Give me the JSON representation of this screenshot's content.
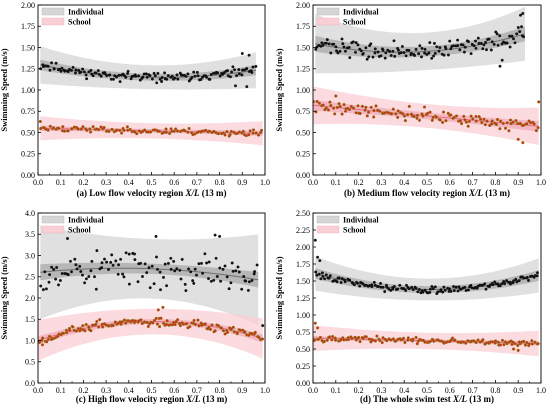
{
  "colors": {
    "individual_band_outer": "#d6d6d6",
    "individual_band_inner": "#a9a9a9",
    "individual_line": "#6e6e6e",
    "individual_points": "#111111",
    "school_band_outer": "#f9cfd6",
    "school_band_inner": "#f2a9b5",
    "school_line": "#e46b7e",
    "school_points_fill": "#cc2a1c",
    "school_points_edge": "#8a8a1a"
  },
  "common": {
    "ylabel": "Swimming Speed (m/s)",
    "x_ticks": [
      "0.0",
      "0.1",
      "0.2",
      "0.3",
      "0.4",
      "0.5",
      "0.6",
      "0.7",
      "0.8",
      "0.9",
      "1.0"
    ],
    "legend": [
      "Individual",
      "School"
    ]
  },
  "chart_data": [
    {
      "type": "scatter",
      "caption_prefix": "(a) Low flow velocity region ",
      "caption_var": "X/L",
      "caption_suffix": " (13 m)",
      "xlim": [
        0,
        1
      ],
      "ylim": [
        0,
        2
      ],
      "y_ticks": [
        "0.00",
        "0.25",
        "0.50",
        "0.75",
        "1.00",
        "1.25",
        "1.50",
        "1.75",
        "2.00"
      ],
      "legend_position": "top-left",
      "series": [
        {
          "name": "Individual",
          "seed": 11,
          "xmin": 0.01,
          "xmax": 0.96,
          "curve": [
            1.3,
            -0.55,
            0.5
          ],
          "noise": 0.05,
          "n": 140,
          "ci": 0.04,
          "pi": 0.14,
          "outliers": [
            [
              0.9,
              1.43
            ],
            [
              0.93,
              1.41
            ],
            [
              0.87,
              1.05
            ],
            [
              0.92,
              1.04
            ]
          ]
        },
        {
          "name": "School",
          "seed": 23,
          "xmin": 0.01,
          "xmax": 0.99,
          "curve": [
            0.55,
            -0.06,
            0.0
          ],
          "noise": 0.035,
          "n": 120,
          "ci": 0.02,
          "pi": 0.09,
          "outliers": [
            [
              0.01,
              0.63
            ]
          ]
        }
      ]
    },
    {
      "type": "scatter",
      "caption_prefix": "(b) Medium flow velocity region ",
      "caption_var": "X/L",
      "caption_suffix": " (13 m)",
      "xlim": [
        0,
        1
      ],
      "ylim": [
        0,
        2
      ],
      "y_ticks": [
        "0.00",
        "0.25",
        "0.50",
        "0.75",
        "1.00",
        "1.25",
        "1.50",
        "1.75",
        "2.00"
      ],
      "legend_position": "top-left",
      "series": [
        {
          "name": "Individual",
          "seed": 37,
          "xmin": 0.01,
          "xmax": 0.93,
          "curve": [
            1.55,
            -0.55,
            0.72
          ],
          "noise": 0.09,
          "n": 140,
          "ci": 0.06,
          "pi": 0.22,
          "outliers": [
            [
              0.91,
              1.88
            ],
            [
              0.92,
              1.9
            ],
            [
              0.82,
              1.28
            ],
            [
              0.83,
              1.35
            ]
          ]
        },
        {
          "name": "School",
          "seed": 41,
          "xmin": 0.0,
          "xmax": 0.99,
          "curve": [
            0.82,
            -0.25,
            0.0
          ],
          "noise": 0.07,
          "n": 130,
          "ci": 0.04,
          "pi": 0.14,
          "outliers": [
            [
              0.1,
              0.93
            ],
            [
              0.99,
              0.86
            ],
            [
              0.9,
              0.42
            ],
            [
              0.92,
              0.38
            ]
          ]
        }
      ]
    },
    {
      "type": "scatter",
      "caption_prefix": "(c) High flow velocity region ",
      "caption_var": "X/L",
      "caption_suffix": " (13 m)",
      "xlim": [
        0,
        1
      ],
      "ylim": [
        0,
        4
      ],
      "y_ticks": [
        "0.0",
        "0.5",
        "1.0",
        "1.5",
        "2.0",
        "2.5",
        "3.0",
        "3.5",
        "4.0"
      ],
      "legend_position": "top-left",
      "series": [
        {
          "name": "Individual",
          "seed": 53,
          "xmin": 0.01,
          "xmax": 0.97,
          "curve": [
            2.6,
            0.55,
            -0.75
          ],
          "noise": 0.45,
          "n": 120,
          "ci": 0.12,
          "pi": 0.7,
          "outliers": [
            [
              0.78,
              3.48
            ],
            [
              0.8,
              3.45
            ],
            [
              0.52,
              3.45
            ],
            [
              0.13,
              3.4
            ],
            [
              0.99,
              1.35
            ]
          ]
        },
        {
          "name": "School",
          "seed": 67,
          "xmin": 0.0,
          "xmax": 0.99,
          "curve": [
            1.0,
            1.75,
            -1.72
          ],
          "noise": 0.1,
          "n": 150,
          "ci": 0.06,
          "pi": 0.3,
          "outliers": [
            [
              0.02,
              0.9
            ],
            [
              0.55,
              1.78
            ],
            [
              0.53,
              1.72
            ]
          ]
        }
      ]
    },
    {
      "type": "scatter",
      "caption_prefix": "(d) The whole swim test ",
      "caption_var": "X/L",
      "caption_suffix": " (13 m)",
      "xlim": [
        0,
        1
      ],
      "ylim": [
        0,
        2.5
      ],
      "y_ticks": [
        "0.00",
        "0.25",
        "0.50",
        "0.75",
        "1.00",
        "1.25",
        "1.50",
        "1.75",
        "2.00",
        "2.25",
        "2.50"
      ],
      "legend_position": "top-left",
      "series": [
        {
          "name": "Individual",
          "seed": 79,
          "xmin": 0.01,
          "xmax": 0.99,
          "curve": [
            1.62,
            -0.95,
            0.92
          ],
          "noise": 0.05,
          "n": 150,
          "ci": 0.05,
          "pi": 0.16,
          "outliers": [
            [
              0.01,
              2.1
            ],
            [
              0.02,
              1.85
            ],
            [
              0.03,
              1.8
            ]
          ]
        },
        {
          "name": "School",
          "seed": 97,
          "xmin": 0.0,
          "xmax": 0.99,
          "curve": [
            0.66,
            -0.08,
            0.0
          ],
          "noise": 0.04,
          "n": 140,
          "ci": 0.02,
          "pi": 0.12,
          "outliers": [
            [
              0.01,
              0.88
            ],
            [
              0.02,
              0.81
            ],
            [
              0.88,
              0.5
            ],
            [
              0.9,
              0.48
            ]
          ]
        }
      ]
    }
  ]
}
